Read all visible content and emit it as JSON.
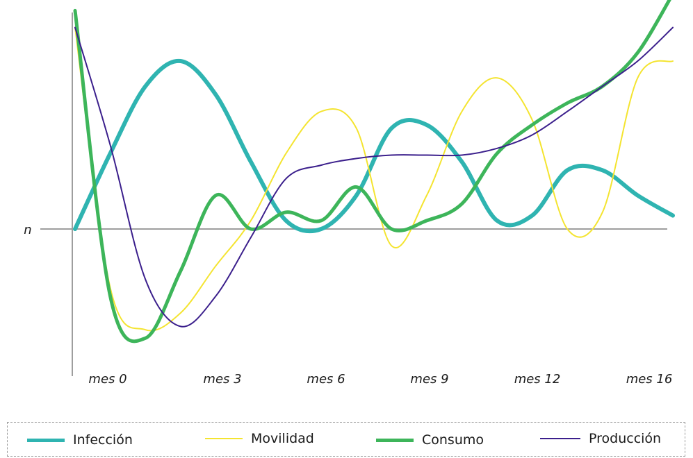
{
  "chart_data": {
    "type": "line",
    "baseline_label": "n",
    "x_ticks": [
      "mes 0",
      "mes 3",
      "mes 6",
      "mes 9",
      "mes 12",
      "mes 16"
    ],
    "x": [
      0,
      1,
      2,
      3,
      4,
      5,
      6,
      7,
      8,
      9,
      10,
      11,
      12,
      13,
      14,
      15,
      16,
      17
    ],
    "grid": false,
    "legend_position": "bottom",
    "series": [
      {
        "name": "Infección",
        "color": "#2fb4b1",
        "width": 6,
        "values": [
          0.0,
          0.45,
          0.85,
          1.0,
          0.8,
          0.4,
          0.05,
          0.0,
          0.2,
          0.6,
          0.62,
          0.4,
          0.05,
          0.08,
          0.35,
          0.35,
          0.2,
          0.08
        ]
      },
      {
        "name": "Movilidad",
        "color": "#f4e430",
        "width": 2,
        "values": [
          1.2,
          -0.35,
          -0.6,
          -0.5,
          -0.22,
          0.05,
          0.45,
          0.7,
          0.6,
          -0.1,
          0.2,
          0.7,
          0.9,
          0.65,
          0.0,
          0.1,
          0.9,
          1.0
        ]
      },
      {
        "name": "Consumo",
        "color": "#3db55a",
        "width": 5,
        "values": [
          1.3,
          -0.4,
          -0.65,
          -0.25,
          0.2,
          0.0,
          0.1,
          0.05,
          0.25,
          0.0,
          0.05,
          0.15,
          0.45,
          0.62,
          0.75,
          0.85,
          1.05,
          1.4
        ]
      },
      {
        "name": "Producción",
        "color": "#3b1f8c",
        "width": 2,
        "values": [
          1.2,
          0.5,
          -0.3,
          -0.58,
          -0.4,
          -0.05,
          0.3,
          0.38,
          0.42,
          0.44,
          0.44,
          0.44,
          0.48,
          0.56,
          0.7,
          0.85,
          1.0,
          1.2
        ]
      }
    ]
  }
}
